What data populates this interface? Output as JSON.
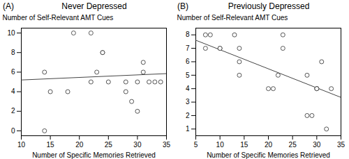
{
  "chart_data": [
    {
      "type": "scatter",
      "title": "Never Depressed",
      "annotations": [
        "(A)"
      ],
      "xlabel": "Number of Specific Memories Retrieved",
      "ylabel": "Number of Self-Relevant AMT Cues",
      "xlim": [
        10,
        35
      ],
      "ylim": [
        -0.5,
        10.5
      ],
      "xticks": [
        10,
        15,
        20,
        25,
        30,
        35
      ],
      "yticks": [
        0,
        2,
        4,
        6,
        8,
        10
      ],
      "grid": false,
      "series": [
        {
          "type": "scatter",
          "marker": "circle",
          "color": "#444444",
          "x": [
            14,
            14,
            15,
            18,
            19,
            22,
            22,
            23,
            24,
            24,
            25,
            28,
            28,
            29,
            30,
            30,
            31,
            31,
            32,
            33,
            34
          ],
          "values": [
            6,
            0,
            4,
            4,
            10,
            10,
            5,
            6,
            8,
            8,
            5,
            5,
            4,
            3,
            5,
            2,
            6,
            7,
            5,
            5,
            5
          ]
        },
        {
          "type": "line",
          "line_style": "solid",
          "color": "#444444",
          "x": [
            10,
            35
          ],
          "values": [
            5.2,
            5.85
          ]
        }
      ]
    },
    {
      "type": "scatter",
      "title": "Previously Depressed",
      "annotations": [
        "(B)"
      ],
      "xlabel": "Number of Specific Memories Retrieved",
      "ylabel": "Number of Self-Relevant AMT Cues",
      "xlim": [
        5,
        35
      ],
      "ylim": [
        0.5,
        8.5
      ],
      "xticks": [
        5,
        10,
        15,
        20,
        25,
        30,
        35
      ],
      "yticks": [
        1,
        2,
        3,
        4,
        5,
        6,
        7,
        8
      ],
      "grid": false,
      "series": [
        {
          "type": "scatter",
          "marker": "circle",
          "color": "#444444",
          "x": [
            7,
            7,
            8,
            10,
            10,
            13,
            14,
            14,
            14,
            20,
            21,
            22,
            23,
            23,
            28,
            28,
            29,
            30,
            30,
            30,
            31,
            32,
            33
          ],
          "values": [
            8,
            7,
            8,
            7,
            7,
            8,
            6,
            5,
            7,
            4,
            4,
            5,
            8,
            7,
            5,
            2,
            2,
            4,
            4,
            4,
            6,
            1,
            4
          ]
        },
        {
          "type": "line",
          "line_style": "solid",
          "color": "#444444",
          "x": [
            5,
            35
          ],
          "values": [
            7.6,
            3.35
          ]
        }
      ]
    }
  ]
}
